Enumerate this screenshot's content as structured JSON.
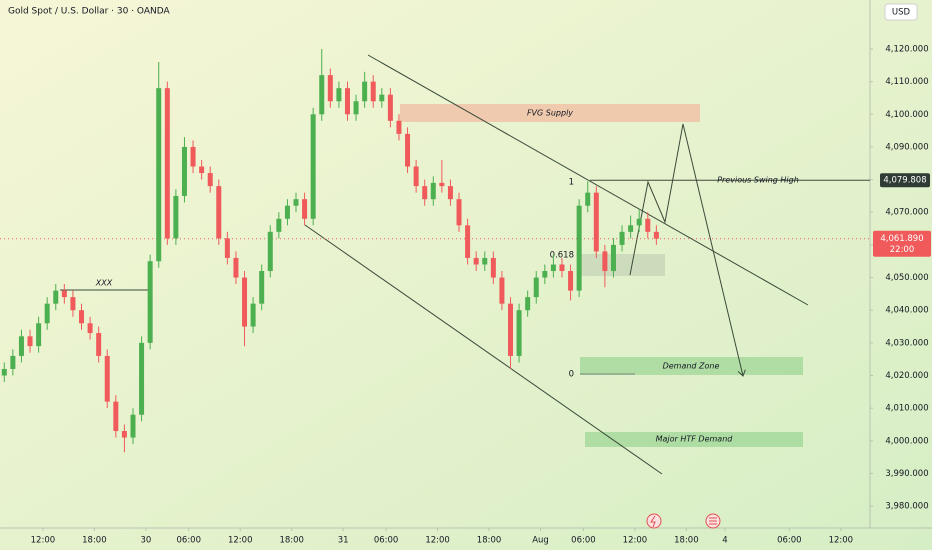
{
  "chart_data": {
    "type": "candlestick",
    "title": "Gold Spot / U.S. Dollar · 30 · OANDA",
    "currency": "USD",
    "up_color": "#4caf50",
    "down_color": "#f05a5a",
    "grid": false,
    "x": [
      1,
      3,
      5,
      7,
      9,
      11,
      13,
      15,
      17,
      19,
      21,
      23,
      25,
      27,
      29,
      31,
      33,
      35,
      37,
      39,
      41,
      43,
      45,
      47,
      49,
      51,
      53,
      55,
      57,
      59,
      61,
      63,
      65,
      67,
      69,
      71,
      73,
      75,
      77,
      79,
      81,
      83,
      85,
      87,
      89,
      91,
      93,
      95,
      97,
      99,
      101,
      103,
      105,
      107,
      109,
      111,
      113,
      115,
      117,
      119,
      121,
      123,
      125,
      127,
      129,
      131,
      133,
      135,
      137,
      139,
      141,
      143,
      145,
      147,
      149,
      151,
      153
    ],
    "open": [
      4020,
      4022,
      4026,
      4032,
      4029,
      4036,
      4042,
      4046,
      4044,
      4040,
      4036,
      4033,
      4026,
      4012,
      4003,
      4001,
      4008,
      4030,
      4055,
      4108,
      4062,
      4075,
      4090,
      4084,
      4082,
      4078,
      4062,
      4056,
      4050,
      4035,
      4042,
      4052,
      4064,
      4068,
      4072,
      4074,
      4068,
      4100,
      4112,
      4104,
      4108,
      4100,
      4104,
      4110,
      4104,
      4106,
      4098,
      4094,
      4084,
      4078,
      4074,
      4079,
      4078,
      4074,
      4066,
      4056,
      4054,
      4056,
      4050,
      4042,
      4026,
      4040,
      4044,
      4050,
      4052,
      4054,
      4052,
      4046,
      4072,
      4076,
      4058,
      4052,
      4060,
      4064,
      4066,
      4068,
      4064
    ],
    "high": [
      4024,
      4028,
      4034,
      4034,
      4038,
      4044,
      4048,
      4048,
      4046,
      4042,
      4038,
      4035,
      4028,
      4014,
      4005,
      4010,
      4032,
      4057,
      4116,
      4110,
      4077,
      4093,
      4092,
      4086,
      4084,
      4080,
      4064,
      4058,
      4052,
      4044,
      4054,
      4066,
      4070,
      4074,
      4076,
      4076,
      4102,
      4120,
      4114,
      4110,
      4110,
      4106,
      4113,
      4112,
      4108,
      4108,
      4100,
      4096,
      4086,
      4080,
      4081,
      4086,
      4080,
      4076,
      4068,
      4058,
      4058,
      4058,
      4052,
      4044,
      4042,
      4046,
      4052,
      4054,
      4057,
      4056,
      4054,
      4074,
      4079.5,
      4078,
      4060,
      4062,
      4066,
      4069,
      4071,
      4070,
      4066
    ],
    "low": [
      4018,
      4020,
      4024,
      4027,
      4027,
      4034,
      4040,
      4042,
      4038,
      4034,
      4031,
      4024,
      4010,
      4001,
      3996.5,
      3999,
      4006,
      4028,
      4053,
      4060,
      4060,
      4073,
      4082,
      4080,
      4076,
      4060,
      4054,
      4048,
      4029,
      4033,
      4040,
      4050,
      4062,
      4066,
      4070,
      4066,
      4066,
      4098,
      4102,
      4102,
      4098,
      4098,
      4102,
      4102,
      4102,
      4096,
      4092,
      4082,
      4076,
      4072,
      4072,
      4076,
      4072,
      4064,
      4054,
      4052,
      4052,
      4048,
      4040,
      4022,
      4024,
      4038,
      4042,
      4048,
      4050,
      4050,
      4043,
      4044,
      4070,
      4056,
      4047,
      4050,
      4058,
      4062,
      4064,
      4062,
      4060
    ],
    "close": [
      4022,
      4026,
      4032,
      4029,
      4036,
      4042,
      4046,
      4044,
      4040,
      4036,
      4033,
      4026,
      4012,
      4003,
      4001,
      4008,
      4030,
      4055,
      4108,
      4062,
      4075,
      4090,
      4084,
      4082,
      4078,
      4062,
      4056,
      4050,
      4035,
      4042,
      4052,
      4064,
      4068,
      4072,
      4074,
      4068,
      4100,
      4112,
      4104,
      4108,
      4100,
      4104,
      4110,
      4104,
      4106,
      4098,
      4094,
      4084,
      4078,
      4074,
      4079,
      4078,
      4074,
      4066,
      4056,
      4054,
      4056,
      4050,
      4042,
      4026,
      4040,
      4044,
      4050,
      4052,
      4054,
      4052,
      4046,
      4072,
      4076,
      4058,
      4052,
      4060,
      4064,
      4066,
      4068,
      4064,
      4061.89
    ],
    "xlim": [
      0,
      202.8
    ],
    "xticks": [
      {
        "value": 10,
        "label": "12:00"
      },
      {
        "value": 22,
        "label": "18:00"
      },
      {
        "value": 34,
        "label": "30"
      },
      {
        "value": 44,
        "label": "06:00"
      },
      {
        "value": 56,
        "label": "12:00"
      },
      {
        "value": 68,
        "label": "18:00"
      },
      {
        "value": 80,
        "label": "31"
      },
      {
        "value": 90,
        "label": "06:00"
      },
      {
        "value": 102,
        "label": "12:00"
      },
      {
        "value": 114,
        "label": "18:00"
      },
      {
        "value": 126,
        "label": "Aug"
      },
      {
        "value": 136,
        "label": "06:00"
      },
      {
        "value": 148,
        "label": "12:00"
      },
      {
        "value": 160,
        "label": "18:00"
      },
      {
        "value": 169,
        "label": "4"
      },
      {
        "value": 184,
        "label": "06:00"
      },
      {
        "value": 196,
        "label": "12:00"
      }
    ],
    "ylim": [
      3973.3,
      4135
    ],
    "yticks": [
      {
        "value": 3980,
        "label": "3,980.000"
      },
      {
        "value": 3990,
        "label": "3,990.000"
      },
      {
        "value": 4000,
        "label": "4,000.000"
      },
      {
        "value": 4010,
        "label": "4,010.000"
      },
      {
        "value": 4020,
        "label": "4,020.000"
      },
      {
        "value": 4030,
        "label": "4,030.000"
      },
      {
        "value": 4040,
        "label": "4,040.000"
      },
      {
        "value": 4050,
        "label": "4,050.000"
      },
      {
        "value": 4060,
        "label": "4,060.000"
      },
      {
        "value": 4070,
        "label": "4,070.000"
      },
      {
        "value": 4080,
        "label": "4,080.000"
      },
      {
        "value": 4090,
        "label": "4,090.000"
      },
      {
        "value": 4100,
        "label": "4,100.000"
      },
      {
        "value": 4110,
        "label": "4,110.000"
      },
      {
        "value": 4120,
        "label": "4,120.000"
      }
    ],
    "last_price": {
      "value": 4061.89,
      "label": "4,061.890",
      "countdown": "22:00"
    },
    "swing_high_price": {
      "value": 4079.808,
      "label": "4,079.808"
    },
    "annotations": [
      "FVG Supply",
      "Previous Swing High",
      "Demand Zone",
      "Major HTF Demand",
      "XXX",
      "1",
      "0.618",
      "0"
    ]
  }
}
